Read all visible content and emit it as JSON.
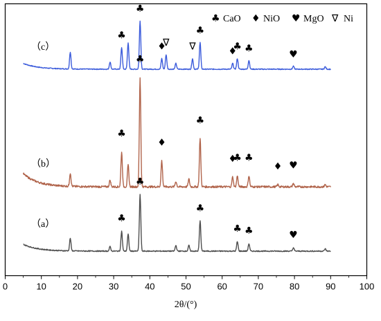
{
  "chart_data": {
    "type": "line",
    "xlabel": "2θ/(°)",
    "ylabel": "",
    "xlim": [
      0,
      100
    ],
    "xticks": [
      "0",
      "10",
      "20",
      "30",
      "40",
      "50",
      "60",
      "70",
      "80",
      "90",
      "100"
    ],
    "legend_position": "top-right",
    "legend": [
      {
        "symbol": "♣",
        "label": "CaO"
      },
      {
        "symbol": "♦",
        "label": "NiO"
      },
      {
        "symbol": "♥",
        "label": "MgO"
      },
      {
        "symbol": "∇",
        "label": "Ni"
      }
    ],
    "series": [
      {
        "label": "（c）",
        "color": "#3B5BDB",
        "peaks": [
          {
            "x": 18.0,
            "h": 0.35
          },
          {
            "x": 29.0,
            "h": 0.15
          },
          {
            "x": 32.2,
            "h": 0.45,
            "marker": "♣"
          },
          {
            "x": 34.0,
            "h": 0.55
          },
          {
            "x": 37.3,
            "h": 1.0,
            "marker": "♣"
          },
          {
            "x": 43.3,
            "h": 0.22,
            "marker": "♦"
          },
          {
            "x": 44.5,
            "h": 0.3,
            "marker": "∇"
          },
          {
            "x": 47.2,
            "h": 0.12
          },
          {
            "x": 51.8,
            "h": 0.22,
            "marker": "∇"
          },
          {
            "x": 53.9,
            "h": 0.55,
            "marker": "♣"
          },
          {
            "x": 62.9,
            "h": 0.12,
            "marker": "♦"
          },
          {
            "x": 64.2,
            "h": 0.22,
            "marker": "♣"
          },
          {
            "x": 67.4,
            "h": 0.18,
            "marker": "♣"
          },
          {
            "x": 79.7,
            "h": 0.06,
            "marker": "♥"
          },
          {
            "x": 88.5,
            "h": 0.05
          }
        ]
      },
      {
        "label": "（b）",
        "color": "#B0634A",
        "peaks": [
          {
            "x": 18.0,
            "h": 0.12
          },
          {
            "x": 29.0,
            "h": 0.06
          },
          {
            "x": 32.2,
            "h": 0.32,
            "marker": "♣"
          },
          {
            "x": 34.0,
            "h": 0.2
          },
          {
            "x": 37.3,
            "h": 1.0,
            "marker": "♣"
          },
          {
            "x": 43.3,
            "h": 0.24,
            "marker": "♦"
          },
          {
            "x": 47.2,
            "h": 0.05
          },
          {
            "x": 50.8,
            "h": 0.07
          },
          {
            "x": 53.9,
            "h": 0.44,
            "marker": "♣"
          },
          {
            "x": 62.9,
            "h": 0.09,
            "marker": "♦"
          },
          {
            "x": 64.2,
            "h": 0.1,
            "marker": "♣"
          },
          {
            "x": 67.4,
            "h": 0.1,
            "marker": "♣"
          },
          {
            "x": 75.4,
            "h": 0.02,
            "marker": "♦"
          },
          {
            "x": 79.7,
            "h": 0.03,
            "marker": "♥"
          },
          {
            "x": 88.5,
            "h": 0.02
          }
        ]
      },
      {
        "label": "（a）",
        "color": "#4D4D4D",
        "peaks": [
          {
            "x": 18.0,
            "h": 0.22
          },
          {
            "x": 29.0,
            "h": 0.08
          },
          {
            "x": 32.2,
            "h": 0.35,
            "marker": "♣"
          },
          {
            "x": 34.0,
            "h": 0.3
          },
          {
            "x": 37.3,
            "h": 1.0,
            "marker": "♣"
          },
          {
            "x": 47.2,
            "h": 0.1
          },
          {
            "x": 50.8,
            "h": 0.1
          },
          {
            "x": 53.9,
            "h": 0.53,
            "marker": "♣"
          },
          {
            "x": 64.2,
            "h": 0.17,
            "marker": "♣"
          },
          {
            "x": 67.4,
            "h": 0.13,
            "marker": "♣"
          },
          {
            "x": 79.7,
            "h": 0.06,
            "marker": "♥"
          },
          {
            "x": 88.5,
            "h": 0.04
          }
        ]
      }
    ]
  }
}
